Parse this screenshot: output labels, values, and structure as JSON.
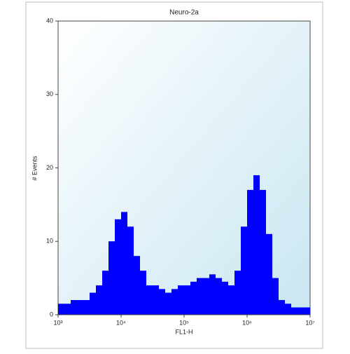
{
  "chart_data": {
    "type": "histogram",
    "title": "Neuro-2a",
    "x_label": "FL1-H",
    "y_label": "# Events",
    "x_log": true,
    "color": "#0000ff",
    "bins": [
      1000,
      1259,
      1585,
      1995,
      2512,
      3162,
      3981,
      5012,
      6310,
      7943,
      10000,
      12589,
      15849,
      19953,
      25119,
      31623,
      39811,
      50119,
      63096,
      79433,
      100000,
      125893,
      158489,
      199526,
      251189,
      316228,
      398107,
      501187,
      630957,
      794328,
      1000000,
      1258925,
      1584893,
      1995262,
      2511886,
      3162278,
      3981072,
      5011872,
      6309573,
      7943282,
      10000000
    ],
    "values": [
      1.5,
      1.5,
      2,
      2,
      2,
      3,
      4,
      6,
      10,
      13,
      14,
      12,
      8,
      6,
      4,
      4,
      3.5,
      3,
      3.5,
      4,
      4,
      4.5,
      5,
      5,
      5.5,
      5,
      4.5,
      4,
      6,
      12,
      17,
      19,
      17,
      11,
      5,
      2,
      1.5,
      1,
      1,
      1
    ],
    "xlim": [
      1000,
      10000000
    ],
    "xticks": [
      {
        "value": 1000,
        "label": "10³"
      },
      {
        "value": 10000,
        "label": "10⁴"
      },
      {
        "value": 100000,
        "label": "10⁵"
      },
      {
        "value": 1000000,
        "label": "10⁶"
      },
      {
        "value": 10000000,
        "label": "10⁷"
      }
    ],
    "ylim": [
      0,
      40
    ],
    "yticks": [
      0,
      10,
      20,
      30,
      40
    ]
  }
}
